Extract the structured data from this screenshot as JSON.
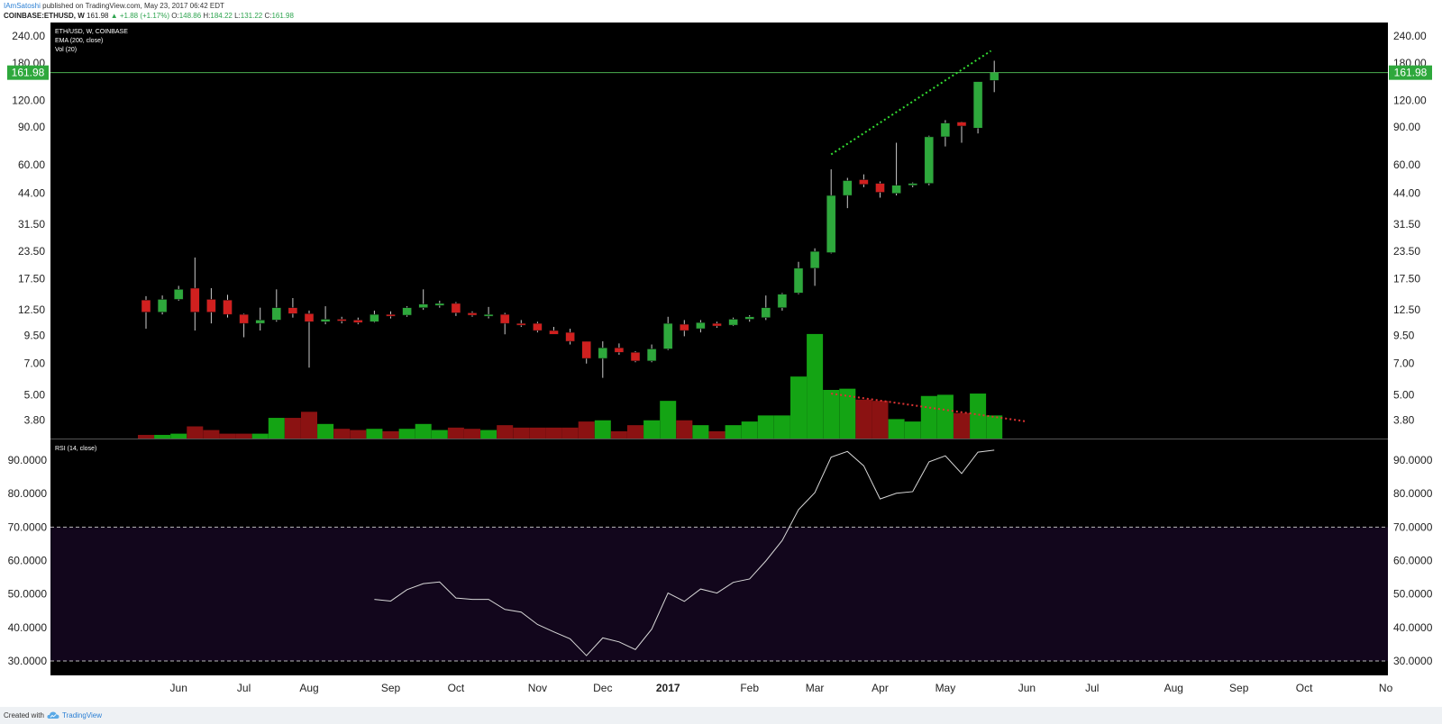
{
  "header": {
    "publisher": "IAmSatoshi",
    "published_text": "published on TradingView.com, May 23, 2017 06:42 EDT",
    "symbol": "COINBASE:ETHUSD, W",
    "last": "161.98",
    "change": "▲ +1.88 (+1.17%)",
    "open_label": "O:",
    "open": "148.86",
    "high_label": "H:",
    "high": "184.22",
    "low_label": "L:",
    "low": "131.22",
    "close_label": "C:",
    "close": "161.98"
  },
  "footer": {
    "created_with": "Created with",
    "brand": "TradingView",
    "logo_icon": "tradingview-cloud-icon"
  },
  "chart_data": {
    "type": "candlestick",
    "legend": [
      "ETH/USD, W, COINBASE",
      "EMA (200, close)",
      "Vol (20)"
    ],
    "price_axis": {
      "scale": "log",
      "range": [
        3.4,
        260
      ],
      "ticks": [
        "240.00",
        "180.00",
        "120.00",
        "90.00",
        "60.00",
        "44.00",
        "31.50",
        "23.50",
        "17.50",
        "12.50",
        "9.50",
        "7.00",
        "5.00",
        "3.80"
      ]
    },
    "last_price_label": "161.98",
    "last_price_line_color": "#4caf50",
    "x_axis": {
      "labels": [
        {
          "text": "Jun",
          "week": 2
        },
        {
          "text": "Jul",
          "week": 6
        },
        {
          "text": "Aug",
          "week": 10
        },
        {
          "text": "Sep",
          "week": 15
        },
        {
          "text": "Oct",
          "week": 19
        },
        {
          "text": "Nov",
          "week": 24
        },
        {
          "text": "Dec",
          "week": 28
        },
        {
          "text": "2017",
          "week": 32,
          "bold": true
        },
        {
          "text": "Feb",
          "week": 37
        },
        {
          "text": "Mar",
          "week": 41
        },
        {
          "text": "Apr",
          "week": 45
        },
        {
          "text": "May",
          "week": 49
        },
        {
          "text": "Jun",
          "week": 54
        },
        {
          "text": "Jul",
          "week": 58
        },
        {
          "text": "Aug",
          "week": 63
        },
        {
          "text": "Sep",
          "week": 67
        },
        {
          "text": "Oct",
          "week": 71
        },
        {
          "text": "No",
          "week": 76
        }
      ]
    },
    "candles": [
      {
        "w": 0,
        "o": 13.9,
        "h": 14.5,
        "l": 10.2,
        "c": 12.2
      },
      {
        "w": 1,
        "o": 12.2,
        "h": 14.6,
        "l": 11.9,
        "c": 14.0
      },
      {
        "w": 2,
        "o": 14.0,
        "h": 16.2,
        "l": 13.8,
        "c": 15.6
      },
      {
        "w": 3,
        "o": 15.8,
        "h": 22.0,
        "l": 10.0,
        "c": 12.2
      },
      {
        "w": 4,
        "o": 14.0,
        "h": 15.8,
        "l": 10.8,
        "c": 12.2
      },
      {
        "w": 5,
        "o": 13.9,
        "h": 14.7,
        "l": 11.5,
        "c": 11.9
      },
      {
        "w": 6,
        "o": 11.9,
        "h": 12.0,
        "l": 9.3,
        "c": 10.8
      },
      {
        "w": 7,
        "o": 10.8,
        "h": 12.8,
        "l": 10.0,
        "c": 11.2
      },
      {
        "w": 8,
        "o": 11.2,
        "h": 15.6,
        "l": 11.0,
        "c": 12.8
      },
      {
        "w": 9,
        "o": 12.8,
        "h": 14.2,
        "l": 11.5,
        "c": 12.0
      },
      {
        "w": 10,
        "o": 12.0,
        "h": 12.4,
        "l": 6.7,
        "c": 11.0
      },
      {
        "w": 11,
        "o": 11.0,
        "h": 13.0,
        "l": 10.7,
        "c": 11.3
      },
      {
        "w": 12,
        "o": 11.3,
        "h": 11.6,
        "l": 10.8,
        "c": 11.1
      },
      {
        "w": 13,
        "o": 11.2,
        "h": 11.5,
        "l": 10.7,
        "c": 10.9
      },
      {
        "w": 14,
        "o": 11.0,
        "h": 12.4,
        "l": 10.9,
        "c": 11.9
      },
      {
        "w": 15,
        "o": 11.9,
        "h": 12.3,
        "l": 11.4,
        "c": 11.7
      },
      {
        "w": 16,
        "o": 11.8,
        "h": 13.0,
        "l": 11.6,
        "c": 12.8
      },
      {
        "w": 17,
        "o": 12.8,
        "h": 15.6,
        "l": 12.5,
        "c": 13.3
      },
      {
        "w": 18,
        "o": 13.1,
        "h": 13.8,
        "l": 12.8,
        "c": 13.4
      },
      {
        "w": 19,
        "o": 13.4,
        "h": 13.6,
        "l": 11.7,
        "c": 12.1
      },
      {
        "w": 20,
        "o": 12.1,
        "h": 12.3,
        "l": 11.6,
        "c": 11.8
      },
      {
        "w": 21,
        "o": 11.8,
        "h": 12.9,
        "l": 11.4,
        "c": 11.9
      },
      {
        "w": 22,
        "o": 11.9,
        "h": 12.1,
        "l": 9.6,
        "c": 10.8
      },
      {
        "w": 23,
        "o": 10.8,
        "h": 11.2,
        "l": 10.4,
        "c": 10.7
      },
      {
        "w": 24,
        "o": 10.8,
        "h": 11.0,
        "l": 9.8,
        "c": 10.0
      },
      {
        "w": 25,
        "o": 10.0,
        "h": 10.4,
        "l": 9.6,
        "c": 9.6
      },
      {
        "w": 26,
        "o": 9.8,
        "h": 10.2,
        "l": 8.6,
        "c": 8.9
      },
      {
        "w": 27,
        "o": 8.9,
        "h": 8.9,
        "l": 7.0,
        "c": 7.4
      },
      {
        "w": 28,
        "o": 7.4,
        "h": 8.9,
        "l": 6.0,
        "c": 8.3
      },
      {
        "w": 29,
        "o": 8.3,
        "h": 8.7,
        "l": 7.7,
        "c": 7.9
      },
      {
        "w": 30,
        "o": 7.9,
        "h": 8.0,
        "l": 7.1,
        "c": 7.2
      },
      {
        "w": 31,
        "o": 7.2,
        "h": 8.6,
        "l": 7.1,
        "c": 8.2
      },
      {
        "w": 32,
        "o": 8.2,
        "h": 11.6,
        "l": 8.1,
        "c": 10.8
      },
      {
        "w": 33,
        "o": 10.7,
        "h": 11.2,
        "l": 9.4,
        "c": 10.0
      },
      {
        "w": 34,
        "o": 10.2,
        "h": 11.2,
        "l": 9.8,
        "c": 10.9
      },
      {
        "w": 35,
        "o": 10.8,
        "h": 11.0,
        "l": 10.3,
        "c": 10.5
      },
      {
        "w": 36,
        "o": 10.6,
        "h": 11.5,
        "l": 10.5,
        "c": 11.3
      },
      {
        "w": 37,
        "o": 11.3,
        "h": 11.8,
        "l": 11.0,
        "c": 11.6
      },
      {
        "w": 38,
        "o": 11.5,
        "h": 14.6,
        "l": 11.2,
        "c": 12.8
      },
      {
        "w": 39,
        "o": 12.8,
        "h": 15.0,
        "l": 12.4,
        "c": 14.8
      },
      {
        "w": 40,
        "o": 15.0,
        "h": 21.0,
        "l": 14.8,
        "c": 19.6
      },
      {
        "w": 41,
        "o": 19.6,
        "h": 24.3,
        "l": 16.2,
        "c": 23.5
      },
      {
        "w": 42,
        "o": 23.2,
        "h": 57.0,
        "l": 23.0,
        "c": 43.0
      },
      {
        "w": 43,
        "o": 43.0,
        "h": 52.0,
        "l": 37.5,
        "c": 50.5
      },
      {
        "w": 44,
        "o": 51.0,
        "h": 54.0,
        "l": 47.0,
        "c": 48.5
      },
      {
        "w": 45,
        "o": 49.0,
        "h": 50.0,
        "l": 42.0,
        "c": 44.5
      },
      {
        "w": 46,
        "o": 44.0,
        "h": 76.0,
        "l": 43.0,
        "c": 48.0
      },
      {
        "w": 47,
        "o": 48.0,
        "h": 49.5,
        "l": 47.0,
        "c": 49.0
      },
      {
        "w": 48,
        "o": 49.0,
        "h": 82.0,
        "l": 48.0,
        "c": 81.0
      },
      {
        "w": 49,
        "o": 81.0,
        "h": 97.0,
        "l": 73.0,
        "c": 94.0
      },
      {
        "w": 50,
        "o": 95.0,
        "h": 95.5,
        "l": 76.0,
        "c": 91.0
      },
      {
        "w": 51,
        "o": 89.0,
        "h": 147.0,
        "l": 84.0,
        "c": 147.0
      },
      {
        "w": 52,
        "o": 148.86,
        "h": 184.22,
        "l": 131.22,
        "c": 161.98
      }
    ],
    "volume": [
      3,
      3,
      4,
      10,
      7,
      4,
      4,
      4,
      17,
      17,
      22,
      12,
      8,
      7,
      8,
      6,
      8,
      12,
      7,
      9,
      8,
      7,
      11,
      9,
      9,
      9,
      9,
      14,
      15,
      6,
      11,
      15,
      31,
      15,
      11,
      6,
      11,
      14,
      19,
      19,
      51,
      86,
      40,
      41,
      32,
      31,
      16,
      14,
      35,
      36,
      21,
      37,
      19
    ],
    "rsi": {
      "label": "RSI (14, close)",
      "ticks": [
        "90.0000",
        "80.0000",
        "70.0000",
        "60.0000",
        "50.0000",
        "40.0000",
        "30.0000"
      ],
      "upper_band": 70,
      "lower_band": 30,
      "start_week": 14,
      "values": [
        48.4,
        47.9,
        51.3,
        53.1,
        53.6,
        48.8,
        48.4,
        48.4,
        45.4,
        44.6,
        40.9,
        38.7,
        36.6,
        31.6,
        36.9,
        35.7,
        33.4,
        39.5,
        50.3,
        47.8,
        51.5,
        50.3,
        53.5,
        54.5,
        59.9,
        66.0,
        75.2,
        80.3,
        90.9,
        92.6,
        88.3,
        78.4,
        80.1,
        80.6,
        89.5,
        91.3,
        86.0,
        92.4,
        93.0
      ]
    },
    "annotations": [
      {
        "type": "dotted-line",
        "color": "#33dd33",
        "from": {
          "week": 42,
          "price": 67
        },
        "to": {
          "week": 51.8,
          "price": 205
        }
      },
      {
        "type": "dotted-line",
        "color": "#dd3333",
        "from": {
          "week": 42,
          "volume": 37
        },
        "to": {
          "week": 54,
          "volume": 14
        }
      }
    ]
  }
}
